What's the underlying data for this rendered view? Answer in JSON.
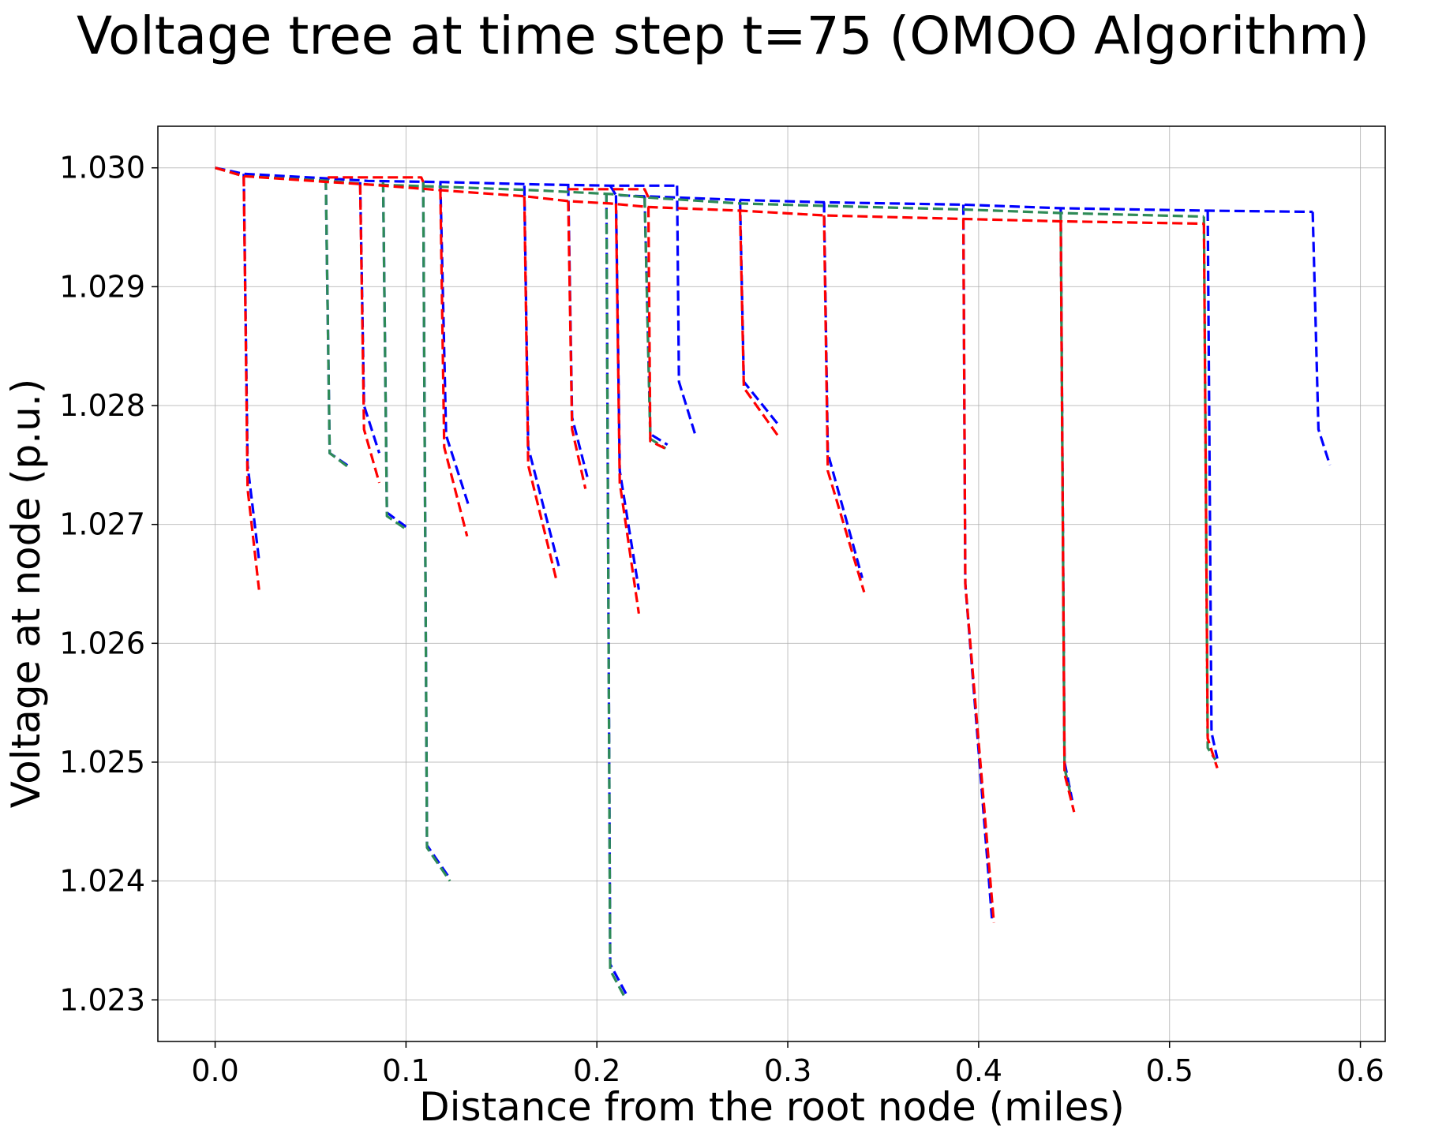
{
  "chart_data": {
    "type": "line",
    "title": "Voltage tree at time step t=75  (OMOO Algorithm)",
    "xlabel": "Distance from the root node (miles)",
    "ylabel": "Voltage at node (p.u.)",
    "xlim": [
      -0.03,
      0.613
    ],
    "ylim": [
      1.02265,
      1.03035
    ],
    "xticks": [
      0.0,
      0.1,
      0.2,
      0.3,
      0.4,
      0.5,
      0.6
    ],
    "xtick_labels": [
      "0.0",
      "0.1",
      "0.2",
      "0.3",
      "0.4",
      "0.5",
      "0.6"
    ],
    "yticks": [
      1.023,
      1.024,
      1.025,
      1.026,
      1.027,
      1.028,
      1.029,
      1.03
    ],
    "ytick_labels": [
      "1.023",
      "1.024",
      "1.025",
      "1.026",
      "1.027",
      "1.028",
      "1.029",
      "1.030"
    ],
    "grid": true,
    "colors": {
      "red": "#ff0000",
      "blue": "#0000ff",
      "green": "#2e8b57"
    },
    "series": [
      {
        "color": "#0000ff",
        "segments": [
          [
            [
              0.0,
              1.03
            ],
            [
              0.015,
              1.02995
            ],
            [
              0.06,
              1.02991
            ],
            [
              0.08,
              1.02989
            ],
            [
              0.12,
              1.02988
            ],
            [
              0.17,
              1.02986
            ],
            [
              0.207,
              1.02985
            ],
            [
              0.242,
              1.02985
            ]
          ],
          [
            [
              0.242,
              1.02985
            ],
            [
              0.243,
              1.0282
            ],
            [
              0.252,
              1.02773
            ]
          ],
          [
            [
              0.207,
              1.02985
            ],
            [
              0.21,
              1.02977
            ],
            [
              0.275,
              1.02973
            ],
            [
              0.319,
              1.02971
            ],
            [
              0.392,
              1.02969
            ],
            [
              0.443,
              1.02966
            ],
            [
              0.52,
              1.02964
            ],
            [
              0.575,
              1.02963
            ]
          ],
          [
            [
              0.575,
              1.02963
            ],
            [
              0.578,
              1.0278
            ],
            [
              0.584,
              1.0275
            ]
          ],
          [
            [
              0.015,
              1.02995
            ],
            [
              0.017,
              1.0275
            ],
            [
              0.023,
              1.0267
            ]
          ],
          [
            [
              0.058,
              1.0299
            ],
            [
              0.06,
              1.0276
            ],
            [
              0.07,
              1.02749
            ]
          ],
          [
            [
              0.076,
              1.02988
            ],
            [
              0.078,
              1.028
            ],
            [
              0.086,
              1.0276
            ]
          ],
          [
            [
              0.088,
              1.02988
            ],
            [
              0.09,
              1.0271
            ],
            [
              0.1,
              1.02698
            ]
          ],
          [
            [
              0.109,
              1.02988
            ],
            [
              0.111,
              1.0243
            ],
            [
              0.123,
              1.02402
            ]
          ],
          [
            [
              0.118,
              1.02988
            ],
            [
              0.121,
              1.02775
            ],
            [
              0.133,
              1.02715
            ]
          ],
          [
            [
              0.162,
              1.02985
            ],
            [
              0.164,
              1.02765
            ],
            [
              0.18,
              1.02665
            ]
          ],
          [
            [
              0.185,
              1.02985
            ],
            [
              0.187,
              1.0279
            ],
            [
              0.195,
              1.0274
            ]
          ],
          [
            [
              0.205,
              1.02979
            ],
            [
              0.207,
              1.0233
            ],
            [
              0.216,
              1.02303
            ]
          ],
          [
            [
              0.21,
              1.02977
            ],
            [
              0.212,
              1.02745
            ],
            [
              0.222,
              1.02645
            ]
          ],
          [
            [
              0.225,
              1.02976
            ],
            [
              0.228,
              1.02776
            ],
            [
              0.237,
              1.02767
            ]
          ],
          [
            [
              0.275,
              1.02973
            ],
            [
              0.277,
              1.0282
            ],
            [
              0.296,
              1.02782
            ]
          ],
          [
            [
              0.319,
              1.02971
            ],
            [
              0.321,
              1.0276
            ],
            [
              0.339,
              1.02655
            ]
          ],
          [
            [
              0.392,
              1.02969
            ],
            [
              0.393,
              1.0265
            ],
            [
              0.407,
              1.02368
            ]
          ],
          [
            [
              0.443,
              1.02966
            ],
            [
              0.445,
              1.025
            ],
            [
              0.449,
              1.02468
            ]
          ],
          [
            [
              0.52,
              1.02964
            ],
            [
              0.522,
              1.02525
            ],
            [
              0.525,
              1.02503
            ]
          ]
        ]
      },
      {
        "color": "#2e8b57",
        "segments": [
          [
            [
              0.0,
              1.03
            ],
            [
              0.015,
              1.02993
            ],
            [
              0.06,
              1.02989
            ],
            [
              0.08,
              1.02986
            ],
            [
              0.12,
              1.02984
            ],
            [
              0.17,
              1.02981
            ],
            [
              0.207,
              1.02978
            ],
            [
              0.227,
              1.02975
            ],
            [
              0.275,
              1.0297
            ],
            [
              0.319,
              1.02968
            ],
            [
              0.392,
              1.02965
            ],
            [
              0.443,
              1.02962
            ],
            [
              0.518,
              1.02959
            ]
          ],
          [
            [
              0.058,
              1.0299
            ],
            [
              0.06,
              1.0276
            ],
            [
              0.07,
              1.02748
            ]
          ],
          [
            [
              0.088,
              1.02988
            ],
            [
              0.09,
              1.02707
            ],
            [
              0.1,
              1.02696
            ]
          ],
          [
            [
              0.109,
              1.02988
            ],
            [
              0.111,
              1.02428
            ],
            [
              0.123,
              1.024
            ]
          ],
          [
            [
              0.205,
              1.02978
            ],
            [
              0.207,
              1.02325
            ],
            [
              0.215,
              1.02301
            ]
          ],
          [
            [
              0.225,
              1.02975
            ],
            [
              0.228,
              1.02772
            ],
            [
              0.236,
              1.02764
            ]
          ],
          [
            [
              0.443,
              1.02962
            ],
            [
              0.445,
              1.02495
            ],
            [
              0.448,
              1.02474
            ]
          ],
          [
            [
              0.518,
              1.02959
            ],
            [
              0.52,
              1.02512
            ],
            [
              0.524,
              1.02502
            ]
          ]
        ]
      },
      {
        "color": "#ff0000",
        "segments": [
          [
            [
              0.0,
              1.03
            ],
            [
              0.015,
              1.02993
            ],
            [
              0.06,
              1.02988
            ],
            [
              0.08,
              1.02986
            ],
            [
              0.12,
              1.02981
            ],
            [
              0.163,
              1.02976
            ],
            [
              0.185,
              1.02972
            ],
            [
              0.207,
              1.0297
            ],
            [
              0.227,
              1.02967
            ],
            [
              0.275,
              1.02964
            ],
            [
              0.319,
              1.0296
            ],
            [
              0.392,
              1.02957
            ],
            [
              0.443,
              1.02955
            ],
            [
              0.518,
              1.02953
            ]
          ],
          [
            [
              0.015,
              1.02993
            ],
            [
              0.017,
              1.0273
            ],
            [
              0.023,
              1.02645
            ]
          ],
          [
            [
              0.059,
              1.02992
            ],
            [
              0.108,
              1.02992
            ],
            [
              0.109,
              1.02988
            ]
          ],
          [
            [
              0.076,
              1.02986
            ],
            [
              0.078,
              1.0278
            ],
            [
              0.086,
              1.02735
            ]
          ],
          [
            [
              0.118,
              1.02982
            ],
            [
              0.12,
              1.02765
            ],
            [
              0.132,
              1.0269
            ]
          ],
          [
            [
              0.162,
              1.02976
            ],
            [
              0.164,
              1.0275
            ],
            [
              0.179,
              1.02652
            ]
          ],
          [
            [
              0.185,
              1.02972
            ],
            [
              0.187,
              1.0278
            ],
            [
              0.194,
              1.0273
            ]
          ],
          [
            [
              0.185,
              1.02982
            ],
            [
              0.225,
              1.02982
            ],
            [
              0.227,
              1.02975
            ]
          ],
          [
            [
              0.21,
              1.0297
            ],
            [
              0.212,
              1.02735
            ],
            [
              0.222,
              1.02625
            ]
          ],
          [
            [
              0.227,
              1.02967
            ],
            [
              0.228,
              1.0277
            ],
            [
              0.237,
              1.02763
            ]
          ],
          [
            [
              0.275,
              1.02964
            ],
            [
              0.277,
              1.02815
            ],
            [
              0.296,
              1.02772
            ]
          ],
          [
            [
              0.319,
              1.0296
            ],
            [
              0.321,
              1.02745
            ],
            [
              0.34,
              1.02643
            ]
          ],
          [
            [
              0.392,
              1.02957
            ],
            [
              0.393,
              1.0265
            ],
            [
              0.408,
              1.02365
            ]
          ],
          [
            [
              0.443,
              1.02955
            ],
            [
              0.445,
              1.0249
            ],
            [
              0.45,
              1.02458
            ]
          ],
          [
            [
              0.518,
              1.02953
            ],
            [
              0.52,
              1.0252
            ],
            [
              0.525,
              1.02495
            ]
          ]
        ]
      }
    ]
  }
}
